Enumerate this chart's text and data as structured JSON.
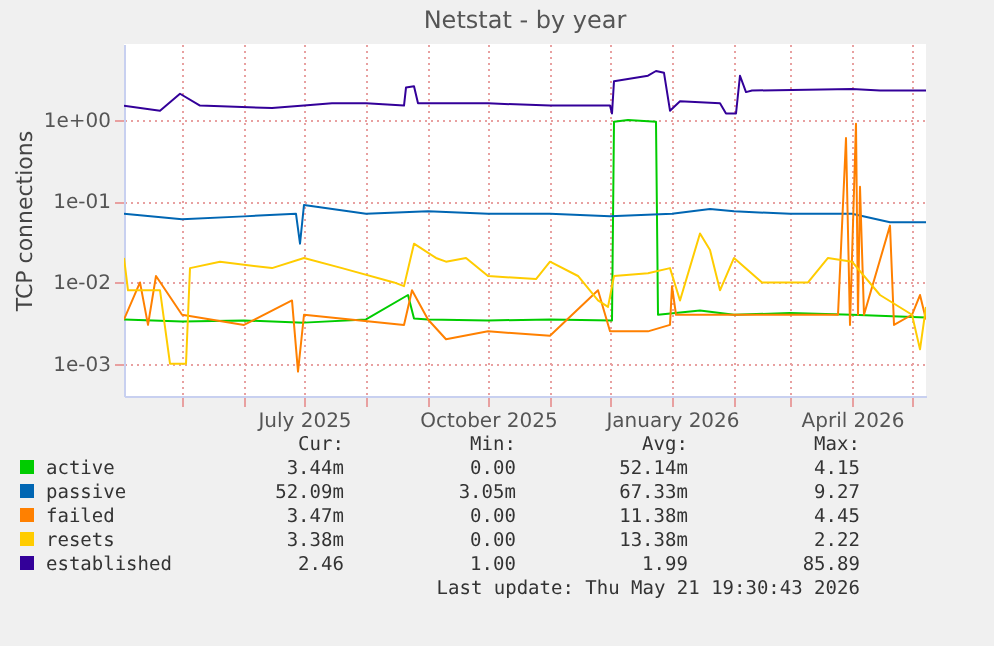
{
  "chart_data": {
    "type": "line",
    "title": "Netstat - by year",
    "ylabel": "TCP connections",
    "log": "y",
    "grid": true,
    "legend": "bottom",
    "line_style": "solid",
    "xlim": [
      "2025-04-02",
      "2026-05-08"
    ],
    "ylim": [
      0.0004,
      8.6
    ],
    "yticks": [
      {
        "value": 0.001,
        "label": "1e-03"
      },
      {
        "value": 0.01,
        "label": "1e-02"
      },
      {
        "value": 0.1,
        "label": "1e-01"
      },
      {
        "value": 1,
        "label": "1e+00"
      }
    ],
    "xticks": [
      {
        "value": "2025-05-01",
        "label": null
      },
      {
        "value": "2025-06-01",
        "label": null
      },
      {
        "value": "2025-07-01",
        "label": "July 2025"
      },
      {
        "value": "2025-08-01",
        "label": null
      },
      {
        "value": "2025-09-01",
        "label": null
      },
      {
        "value": "2025-10-01",
        "label": "October 2025"
      },
      {
        "value": "2025-11-01",
        "label": null
      },
      {
        "value": "2025-12-01",
        "label": null
      },
      {
        "value": "2026-01-01",
        "label": "January 2026"
      },
      {
        "value": "2026-02-01",
        "label": null
      },
      {
        "value": "2026-03-01",
        "label": null
      },
      {
        "value": "2026-04-01",
        "label": "April 2026"
      },
      {
        "value": "2026-05-01",
        "label": null
      }
    ],
    "series": [
      {
        "name": "active",
        "color": "#00cc00",
        "x": [
          "2025-04-02",
          "2025-05-01",
          "2025-06-01",
          "2025-07-01",
          "2025-08-01",
          "2025-08-22",
          "2025-08-25",
          "2025-09-01",
          "2025-10-01",
          "2025-11-01",
          "2025-12-02",
          "2025-12-03",
          "2025-12-10",
          "2025-12-24",
          "2025-12-25",
          "2026-01-15",
          "2026-02-01",
          "2026-03-01",
          "2026-04-01",
          "2026-05-08"
        ],
        "values": [
          0.0035,
          0.0033,
          0.0034,
          0.0032,
          0.0035,
          0.007,
          0.0036,
          0.0035,
          0.0034,
          0.0035,
          0.0034,
          0.95,
          1.0,
          0.95,
          0.004,
          0.0045,
          0.004,
          0.0042,
          0.004,
          0.0037
        ]
      },
      {
        "name": "passive",
        "color": "#0066b3",
        "x": [
          "2025-04-02",
          "2025-05-01",
          "2025-06-01",
          "2025-06-27",
          "2025-06-29",
          "2025-07-01",
          "2025-08-01",
          "2025-09-01",
          "2025-10-01",
          "2025-11-01",
          "2025-12-01",
          "2026-01-01",
          "2026-01-20",
          "2026-02-01",
          "2026-03-01",
          "2026-04-01",
          "2026-04-20",
          "2026-05-08"
        ],
        "values": [
          0.07,
          0.06,
          0.065,
          0.07,
          0.03,
          0.09,
          0.07,
          0.075,
          0.07,
          0.07,
          0.065,
          0.07,
          0.08,
          0.075,
          0.07,
          0.07,
          0.055,
          0.055
        ]
      },
      {
        "name": "failed",
        "color": "#ff8000",
        "x": [
          "2025-04-02",
          "2025-04-10",
          "2025-04-14",
          "2025-04-18",
          "2025-05-01",
          "2025-06-01",
          "2025-06-25",
          "2025-06-28",
          "2025-07-01",
          "2025-08-20",
          "2025-08-24",
          "2025-09-01",
          "2025-09-10",
          "2025-10-01",
          "2025-11-01",
          "2025-11-25",
          "2025-12-01",
          "2025-12-20",
          "2025-12-31",
          "2026-01-01",
          "2026-01-03",
          "2026-02-01",
          "2026-03-01",
          "2026-03-25",
          "2026-03-29",
          "2026-03-31",
          "2026-04-03",
          "2026-04-04",
          "2026-04-05",
          "2026-04-07",
          "2026-04-20",
          "2026-04-22",
          "2026-05-01",
          "2026-05-05",
          "2026-05-08"
        ],
        "values": [
          0.0035,
          0.01,
          0.003,
          0.012,
          0.004,
          0.003,
          0.006,
          0.0008,
          0.004,
          0.003,
          0.008,
          0.0035,
          0.002,
          0.0025,
          0.0022,
          0.008,
          0.0025,
          0.0025,
          0.003,
          0.009,
          0.004,
          0.004,
          0.004,
          0.004,
          0.6,
          0.003,
          0.9,
          0.004,
          0.15,
          0.004,
          0.05,
          0.003,
          0.004,
          0.007,
          0.0035
        ]
      },
      {
        "name": "resets",
        "color": "#ffcc00",
        "x": [
          "2025-04-02",
          "2025-04-04",
          "2025-04-20",
          "2025-04-25",
          "2025-05-03",
          "2025-05-05",
          "2025-05-20",
          "2025-06-15",
          "2025-07-01",
          "2025-07-20",
          "2025-08-15",
          "2025-08-20",
          "2025-08-25",
          "2025-09-05",
          "2025-09-10",
          "2025-09-20",
          "2025-10-01",
          "2025-10-25",
          "2025-11-01",
          "2025-11-15",
          "2025-11-25",
          "2025-11-30",
          "2025-12-03",
          "2025-12-20",
          "2025-12-31",
          "2026-01-05",
          "2026-01-15",
          "2026-01-20",
          "2026-01-25",
          "2026-02-01",
          "2026-02-15",
          "2026-03-10",
          "2026-03-20",
          "2026-04-01",
          "2026-04-15",
          "2026-05-01",
          "2026-05-05",
          "2026-05-08"
        ],
        "values": [
          0.02,
          0.008,
          0.008,
          0.001,
          0.001,
          0.015,
          0.018,
          0.015,
          0.02,
          0.015,
          0.01,
          0.009,
          0.03,
          0.02,
          0.018,
          0.02,
          0.012,
          0.011,
          0.018,
          0.012,
          0.006,
          0.005,
          0.012,
          0.013,
          0.015,
          0.006,
          0.04,
          0.025,
          0.008,
          0.02,
          0.01,
          0.01,
          0.02,
          0.018,
          0.007,
          0.004,
          0.0015,
          0.005
        ]
      },
      {
        "name": "established",
        "color": "#330099",
        "x": [
          "2025-04-02",
          "2025-04-20",
          "2025-04-30",
          "2025-05-10",
          "2025-06-15",
          "2025-07-01",
          "2025-07-15",
          "2025-08-01",
          "2025-08-20",
          "2025-08-21",
          "2025-08-25",
          "2025-08-27",
          "2025-10-01",
          "2025-11-01",
          "2025-12-01",
          "2025-12-02",
          "2025-12-03",
          "2025-12-20",
          "2025-12-24",
          "2025-12-28",
          "2025-12-31",
          "2026-01-05",
          "2026-01-25",
          "2026-01-28",
          "2026-02-02",
          "2026-02-04",
          "2026-02-07",
          "2026-02-10",
          "2026-04-01",
          "2026-04-15",
          "2026-05-08"
        ],
        "values": [
          1.5,
          1.3,
          2.1,
          1.5,
          1.4,
          1.5,
          1.6,
          1.6,
          1.5,
          2.5,
          2.6,
          1.6,
          1.6,
          1.5,
          1.5,
          1.2,
          3.0,
          3.5,
          4.0,
          3.8,
          1.3,
          1.7,
          1.6,
          1.2,
          1.2,
          3.5,
          2.2,
          2.3,
          2.4,
          2.3,
          2.3
        ]
      }
    ],
    "annotations": [
      "Cur:",
      "Min:",
      "Avg:",
      "Max:",
      "3.44m",
      "0.00",
      "52.14m",
      "4.15",
      "52.09m",
      "3.05m",
      "67.33m",
      "9.27",
      "3.47m",
      "0.00",
      "11.38m",
      "4.45",
      "3.38m",
      "0.00",
      "13.38m",
      "2.22",
      "2.46",
      "1.00",
      "1.99",
      "85.89",
      "Last update: Thu May 21 19:30:43 2026"
    ]
  }
}
